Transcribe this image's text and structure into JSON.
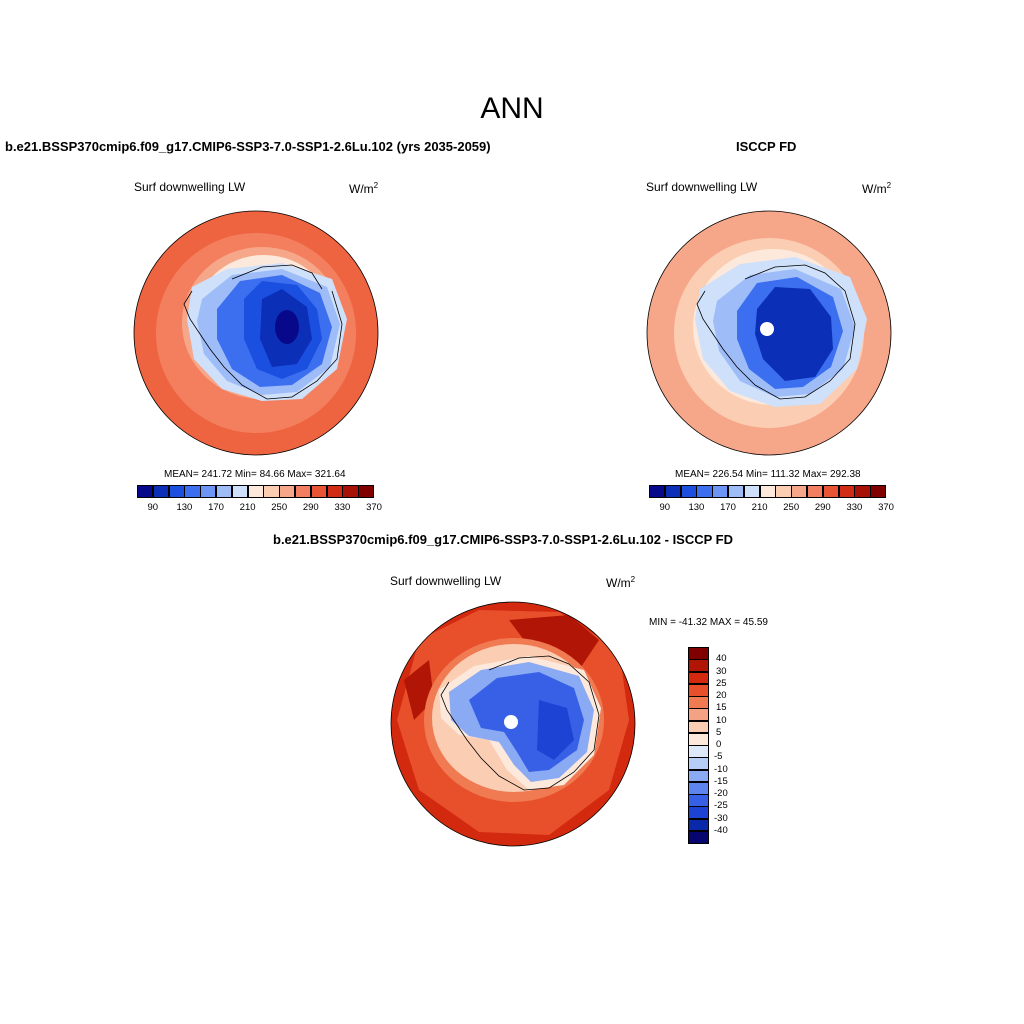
{
  "title": "ANN",
  "panels": [
    {
      "case_title": "b.e21.BSSP370cmip6.f09_g17.CMIP6-SSP3-7.0-SSP1-2.6Lu.102 (yrs 2035-2059)",
      "variable": "Surf downwelling LW",
      "units_base": "W/m",
      "units_exp": "2",
      "stats": "MEAN= 241.72  Min=  84.66  Max= 321.64"
    },
    {
      "case_title": "ISCCP FD",
      "variable": "Surf downwelling LW",
      "units_base": "W/m",
      "units_exp": "2",
      "stats": "MEAN= 226.54  Min= 111.32  Max= 292.38"
    },
    {
      "case_title": "b.e21.BSSP370cmip6.f09_g17.CMIP6-SSP3-7.0-SSP1-2.6Lu.102 - ISCCP FD",
      "variable": "Surf downwelling LW",
      "units_base": "W/m",
      "units_exp": "2",
      "stats": "MIN = -41.32 MAX =  45.59"
    }
  ],
  "abs_colorbar": {
    "colors": [
      "#08088a",
      "#0c2fb8",
      "#1a4fe0",
      "#3b6ff0",
      "#6c95f5",
      "#9ebcf8",
      "#cfe0fb",
      "#fde9dc",
      "#fbcdb2",
      "#f7a789",
      "#f27f5f",
      "#e95434",
      "#d22d14",
      "#a81106",
      "#800000"
    ],
    "tick_labels": [
      "90",
      "130",
      "170",
      "210",
      "250",
      "290",
      "330",
      "370"
    ]
  },
  "diff_colorbar": {
    "colors": [
      "#800000",
      "#b01506",
      "#d2290f",
      "#e8502c",
      "#f07a52",
      "#f4a283",
      "#fbcdb2",
      "#fde9dc",
      "#dde9fb",
      "#b6cdf8",
      "#8aaaf4",
      "#5e84ee",
      "#3760e6",
      "#1c43d4",
      "#0a28aa",
      "#06066e"
    ],
    "tick_labels": [
      "40",
      "30",
      "25",
      "20",
      "15",
      "10",
      "5",
      "0",
      "-5",
      "-10",
      "-15",
      "-20",
      "-25",
      "-30",
      "-40"
    ]
  }
}
